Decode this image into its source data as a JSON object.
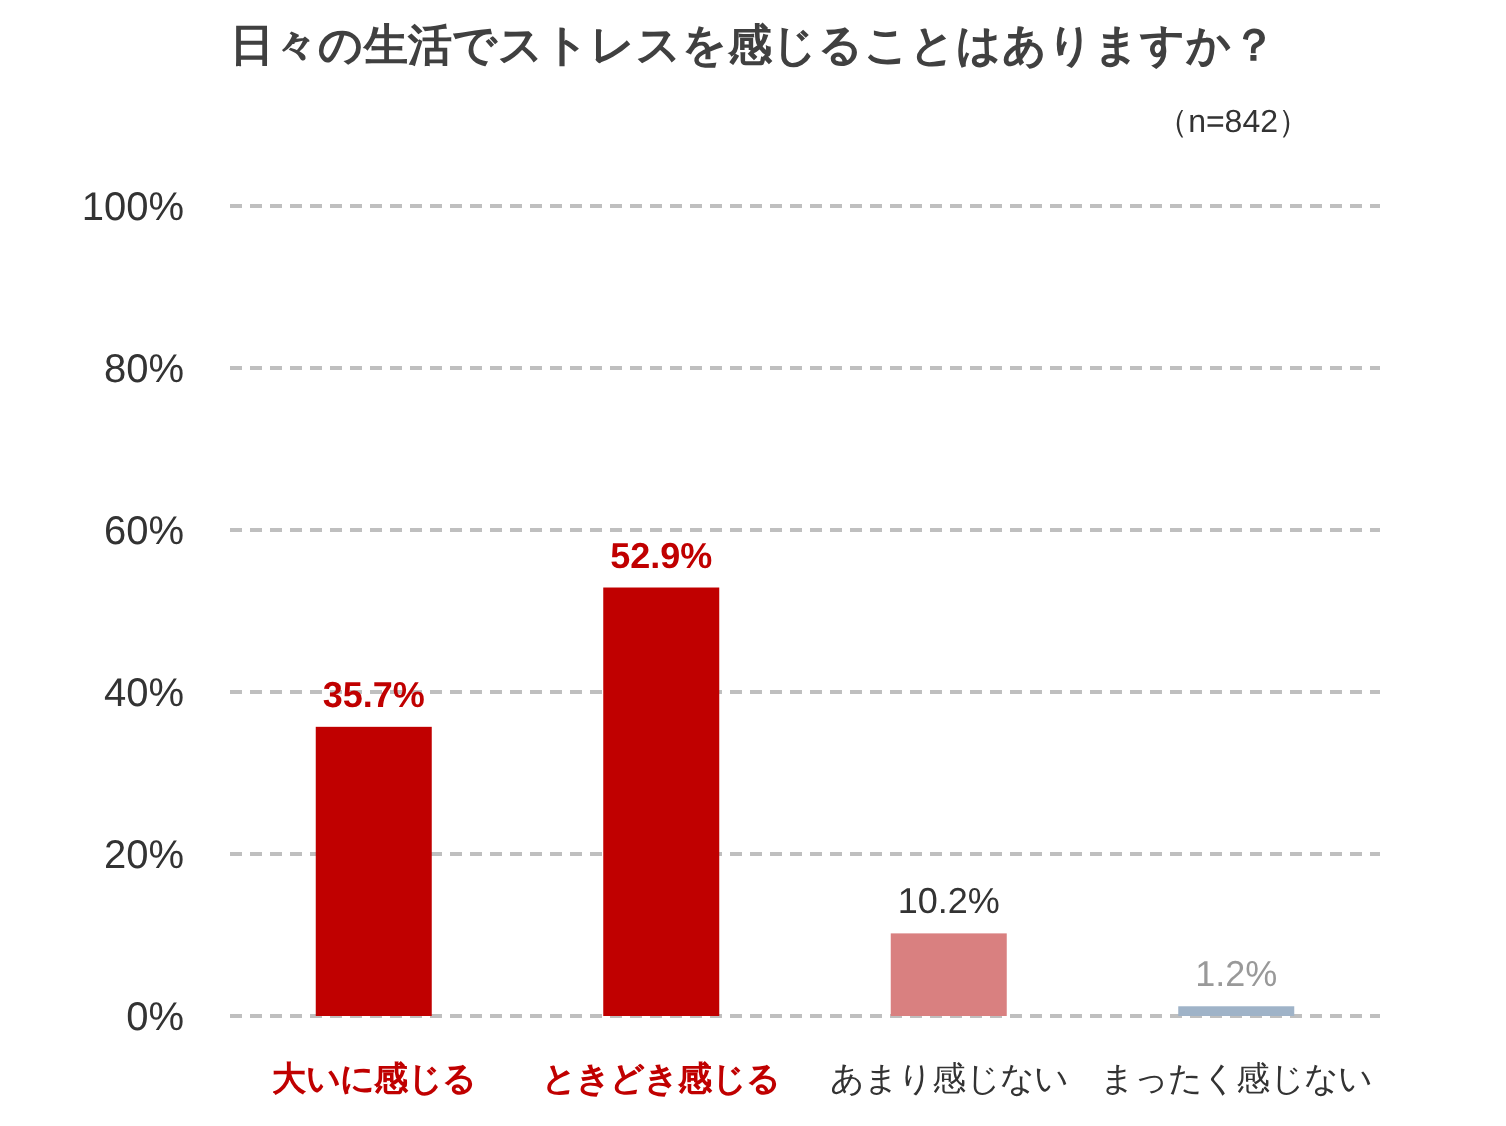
{
  "chart_data": {
    "type": "bar",
    "title": "日々の生活でストレスを感じることはありますか？",
    "annotations": [
      "（n=842）"
    ],
    "categories": [
      "大いに感じる",
      "ときどき感じる",
      "あまり感じない",
      "まったく感じない"
    ],
    "values": [
      35.7,
      52.9,
      10.2,
      1.2
    ],
    "colors": [
      "#c00000",
      "#c00000",
      "#d98080",
      "#9fb3c8"
    ],
    "value_labels": [
      "35.7%",
      "52.9%",
      "10.2%",
      "1.2%"
    ],
    "ylim": [
      0,
      100
    ],
    "yticks": [
      {
        "value": 0,
        "label": "0%"
      },
      {
        "value": 20,
        "label": "20%"
      },
      {
        "value": 40,
        "label": "40%"
      },
      {
        "value": 60,
        "label": "60%"
      },
      {
        "value": 80,
        "label": "80%"
      },
      {
        "value": 100,
        "label": "100%"
      }
    ],
    "grid": "y",
    "line_style": "dashed"
  }
}
